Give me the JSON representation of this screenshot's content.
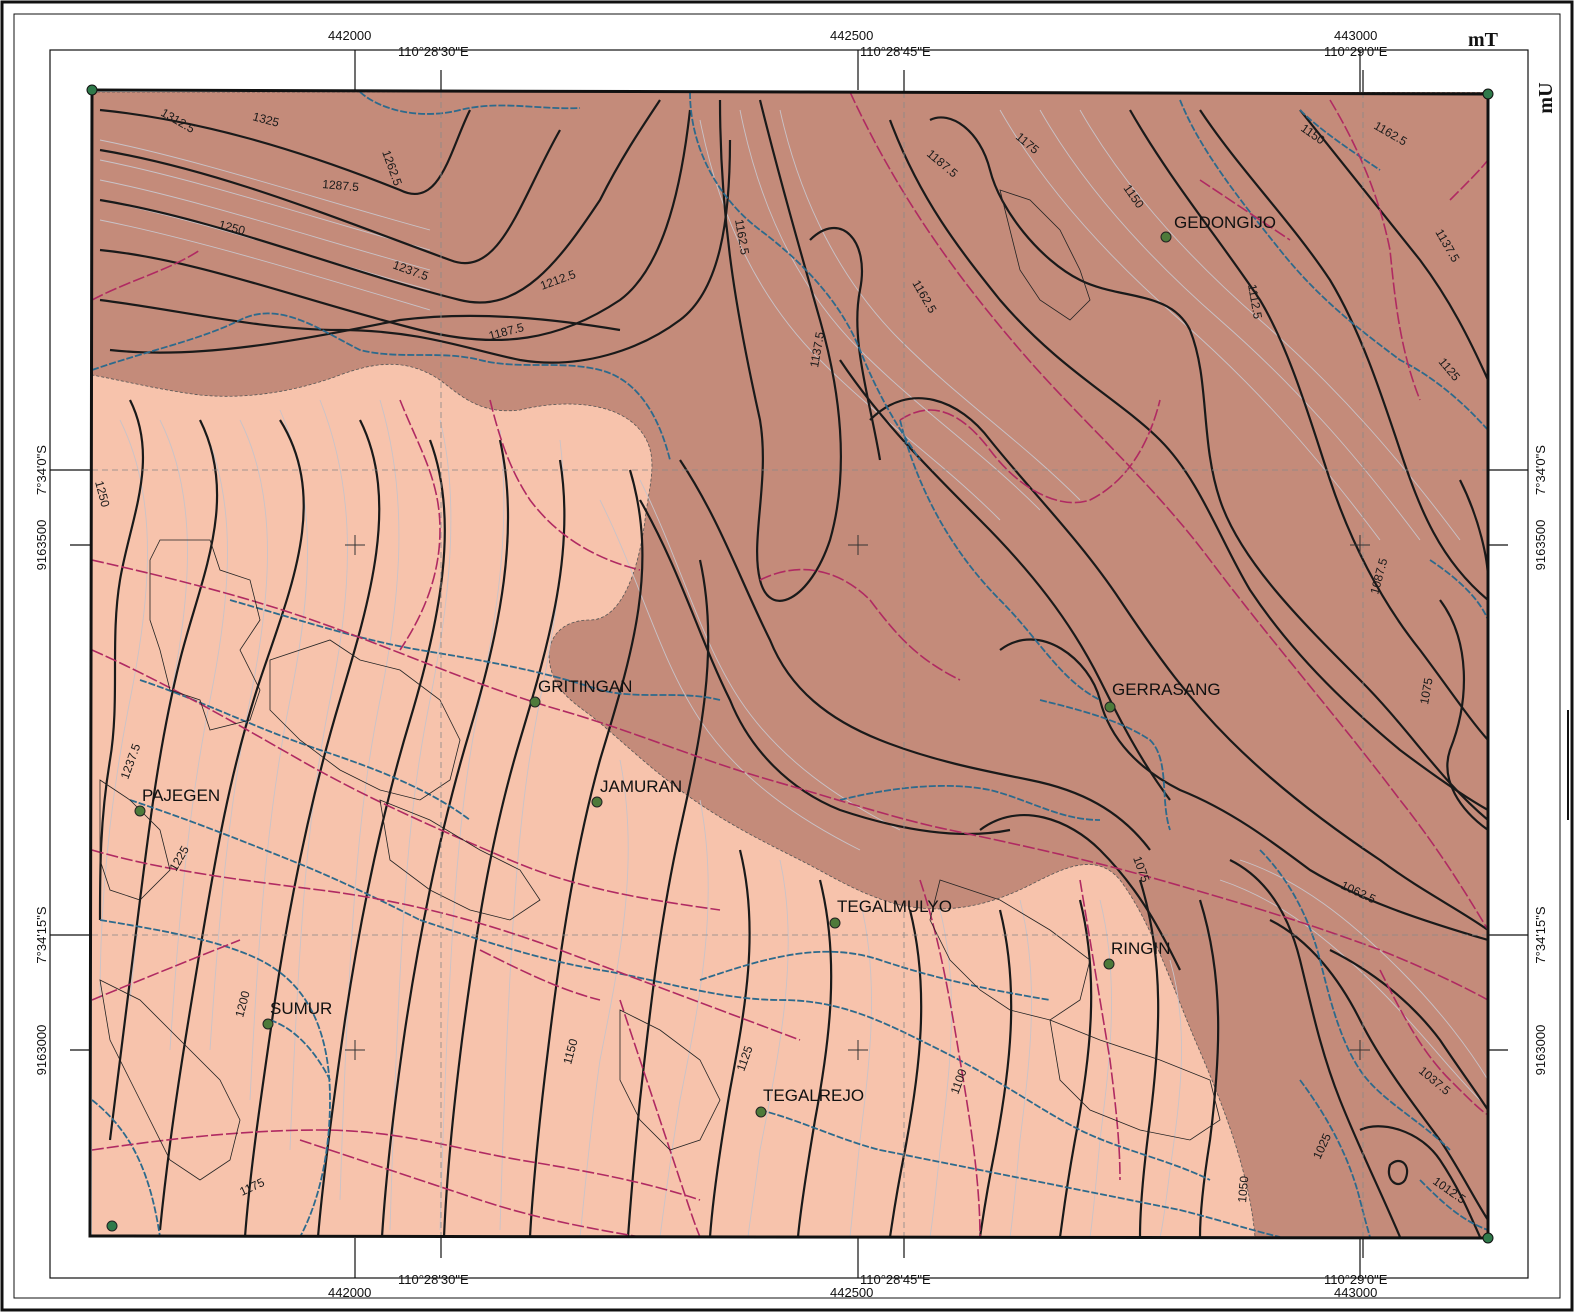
{
  "colors": {
    "zone_light": "#f7c3ac",
    "zone_dark": "#c48b7a",
    "major_contour": "#1a1a1a",
    "minor_contour": "#c9c3c8",
    "river": "#2d6a8c",
    "road": "#b02a62",
    "parcel": "#222222",
    "village_dot": "#4d7a3a",
    "corner_dot": "#2f7a4a"
  },
  "axis_units": {
    "easting": "mT",
    "northing": "mU"
  },
  "top_eastings": [
    "442000",
    "442500",
    "443000"
  ],
  "bottom_eastings": [
    "442000",
    "442500",
    "443000"
  ],
  "top_longitudes": [
    "110°28'30\"E",
    "110°28'45\"E",
    "110°29'0\"E"
  ],
  "bottom_longitudes": [
    "110°28'30\"E",
    "110°28'45\"E",
    "110°29'0\"E"
  ],
  "left_latitudes": [
    "7°34'0\"S",
    "7°34'15\"S"
  ],
  "right_latitudes": [
    "7°34'0\"S",
    "7°34'15\"S"
  ],
  "left_northings": [
    "9163500",
    "9163000"
  ],
  "right_northings": [
    "9163500",
    "9163000"
  ],
  "villages": [
    {
      "name": "GEDONGIJO"
    },
    {
      "name": "GRITINGAN"
    },
    {
      "name": "GERRASANG"
    },
    {
      "name": "PAJEGEN"
    },
    {
      "name": "JAMURAN"
    },
    {
      "name": "TEGALMULYO"
    },
    {
      "name": "RINGIN"
    },
    {
      "name": "SUMUR"
    },
    {
      "name": "TEGALREJO"
    }
  ],
  "contour_labels": [
    "1312.5",
    "1325",
    "1262.5",
    "1287.5",
    "1250",
    "1237.5",
    "1212.5",
    "1187.5",
    "1162.5",
    "1137.5",
    "1187.5",
    "1175",
    "1162.5",
    "1150",
    "1150",
    "1112.5",
    "1162.5",
    "1137.5",
    "1125",
    "1087.5",
    "1075",
    "1250",
    "1237.5",
    "1225",
    "1200",
    "1175",
    "1150",
    "1125",
    "1100",
    "1075",
    "1062.5",
    "1050",
    "1025",
    "1037.5",
    "1012.5"
  ]
}
